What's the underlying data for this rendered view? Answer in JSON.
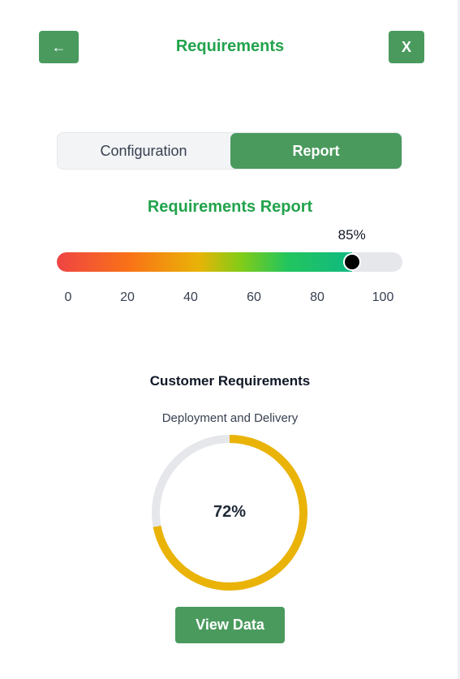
{
  "header": {
    "title": "Requirements",
    "back_label": "←",
    "close_label": "X"
  },
  "tabs": [
    {
      "label": "Configuration",
      "active": false
    },
    {
      "label": "Report",
      "active": true
    }
  ],
  "report": {
    "title": "Requirements Report",
    "slider": {
      "value": 85,
      "value_label": "85%",
      "min": 0,
      "max": 100,
      "ticks": [
        "0",
        "20",
        "40",
        "60",
        "80",
        "100"
      ]
    }
  },
  "customer": {
    "title": "Customer Requirements",
    "category": "Deployment and Delivery",
    "progress": 72,
    "progress_label": "72%",
    "view_label": "View Data"
  },
  "colors": {
    "accent_green": "#4a9a5e",
    "title_green": "#22a34c",
    "donut_fill": "#eab308",
    "donut_track": "#e5e7eb"
  }
}
